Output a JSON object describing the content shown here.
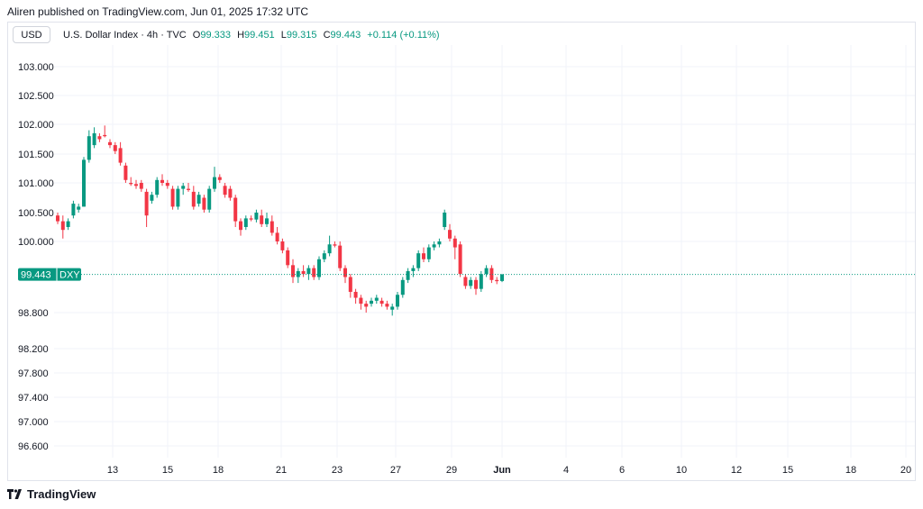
{
  "header": {
    "published": "Aliren published on TradingView.com, Jun 01, 2025 17:32 UTC"
  },
  "legend": {
    "currency": "USD",
    "title": "U.S. Dollar Index · 4h · TVC",
    "open_label": "O",
    "open": "99.333",
    "high_label": "H",
    "high": "99.451",
    "low_label": "L",
    "low": "99.315",
    "close_label": "C",
    "close": "99.443",
    "change": "+0.114 (+0.11%)"
  },
  "footer": {
    "brand": "TradingView"
  },
  "colors": {
    "up": "#089981",
    "down": "#f23645",
    "grid": "#f0f3fa",
    "price_line": "#089981"
  },
  "chart_data": {
    "type": "candlestick",
    "title": "U.S. Dollar Index · 4h · TVC",
    "symbol": "DXY",
    "last_price": "99.443",
    "grid": true,
    "y_ticks": [
      "103.000",
      "102.500",
      "102.000",
      "101.500",
      "101.000",
      "100.500",
      "100.000",
      "98.800",
      "98.200",
      "97.800",
      "97.400",
      "97.000",
      "96.600"
    ],
    "x_ticks": [
      {
        "label": "13",
        "bold": false
      },
      {
        "label": "15",
        "bold": false
      },
      {
        "label": "18",
        "bold": false
      },
      {
        "label": "21",
        "bold": false
      },
      {
        "label": "23",
        "bold": false
      },
      {
        "label": "27",
        "bold": false
      },
      {
        "label": "29",
        "bold": false
      },
      {
        "label": "Jun",
        "bold": true
      },
      {
        "label": "4",
        "bold": false
      },
      {
        "label": "6",
        "bold": false
      },
      {
        "label": "10",
        "bold": false
      },
      {
        "label": "12",
        "bold": false
      },
      {
        "label": "15",
        "bold": false
      },
      {
        "label": "18",
        "bold": false
      },
      {
        "label": "20",
        "bold": false
      }
    ],
    "candles": [
      [
        100.45,
        100.5,
        100.3,
        100.35
      ],
      [
        100.35,
        100.45,
        100.05,
        100.2
      ],
      [
        100.25,
        100.4,
        100.2,
        100.35
      ],
      [
        100.45,
        100.7,
        100.4,
        100.65
      ],
      [
        100.55,
        100.65,
        100.5,
        100.6
      ],
      [
        100.6,
        101.45,
        100.6,
        101.4
      ],
      [
        101.4,
        101.9,
        101.35,
        101.8
      ],
      [
        101.65,
        101.95,
        101.6,
        101.85
      ],
      [
        101.8,
        101.85,
        101.7,
        101.75
      ],
      [
        101.82,
        101.98,
        101.78,
        101.8
      ],
      [
        101.7,
        101.75,
        101.6,
        101.65
      ],
      [
        101.65,
        101.7,
        101.5,
        101.55
      ],
      [
        101.6,
        101.7,
        101.3,
        101.35
      ],
      [
        101.3,
        101.35,
        101.0,
        101.05
      ],
      [
        101.0,
        101.1,
        100.95,
        100.98
      ],
      [
        100.98,
        101.05,
        100.9,
        100.95
      ],
      [
        101.0,
        101.05,
        100.85,
        100.9
      ],
      [
        100.85,
        100.9,
        100.25,
        100.45
      ],
      [
        100.7,
        100.85,
        100.65,
        100.8
      ],
      [
        100.8,
        101.1,
        100.75,
        101.05
      ],
      [
        101.05,
        101.15,
        100.95,
        101.0
      ],
      [
        101.0,
        101.05,
        100.9,
        100.95
      ],
      [
        100.9,
        100.95,
        100.55,
        100.6
      ],
      [
        100.6,
        100.95,
        100.55,
        100.9
      ],
      [
        100.9,
        101.0,
        100.8,
        100.95
      ],
      [
        100.9,
        101.0,
        100.85,
        100.88
      ],
      [
        100.85,
        100.95,
        100.55,
        100.6
      ],
      [
        100.65,
        100.85,
        100.6,
        100.8
      ],
      [
        100.75,
        100.8,
        100.5,
        100.55
      ],
      [
        100.55,
        100.95,
        100.5,
        100.9
      ],
      [
        100.9,
        101.28,
        100.85,
        101.1
      ],
      [
        101.1,
        101.15,
        101.0,
        101.05
      ],
      [
        100.95,
        101.0,
        100.75,
        100.8
      ],
      [
        100.9,
        100.95,
        100.7,
        100.75
      ],
      [
        100.75,
        100.8,
        100.25,
        100.35
      ],
      [
        100.35,
        100.4,
        100.1,
        100.2
      ],
      [
        100.25,
        100.45,
        100.2,
        100.4
      ],
      [
        100.4,
        100.45,
        100.35,
        100.38
      ],
      [
        100.38,
        100.55,
        100.33,
        100.5
      ],
      [
        100.45,
        100.55,
        100.25,
        100.3
      ],
      [
        100.3,
        100.5,
        100.25,
        100.4
      ],
      [
        100.35,
        100.45,
        100.1,
        100.15
      ],
      [
        100.15,
        100.25,
        99.95,
        100.0
      ],
      [
        100.0,
        100.05,
        99.8,
        99.85
      ],
      [
        99.85,
        99.9,
        99.55,
        99.6
      ],
      [
        99.6,
        99.7,
        99.3,
        99.4
      ],
      [
        99.4,
        99.55,
        99.3,
        99.5
      ],
      [
        99.5,
        99.6,
        99.4,
        99.45
      ],
      [
        99.45,
        99.6,
        99.35,
        99.55
      ],
      [
        99.55,
        99.6,
        99.35,
        99.4
      ],
      [
        99.4,
        99.75,
        99.35,
        99.7
      ],
      [
        99.7,
        99.85,
        99.65,
        99.8
      ],
      [
        99.8,
        100.1,
        99.75,
        99.95
      ],
      [
        99.95,
        100.0,
        99.9,
        99.93
      ],
      [
        99.93,
        100.0,
        99.5,
        99.55
      ],
      [
        99.55,
        99.6,
        99.3,
        99.4
      ],
      [
        99.4,
        99.45,
        99.05,
        99.15
      ],
      [
        99.15,
        99.2,
        98.95,
        99.05
      ],
      [
        99.05,
        99.1,
        98.85,
        98.95
      ],
      [
        98.95,
        99.0,
        98.8,
        98.9
      ],
      [
        98.95,
        99.05,
        98.9,
        99.0
      ],
      [
        99.0,
        99.1,
        98.95,
        99.05
      ],
      [
        99.0,
        99.05,
        98.9,
        98.95
      ],
      [
        98.95,
        99.0,
        98.85,
        98.9
      ],
      [
        98.85,
        98.95,
        98.75,
        98.9
      ],
      [
        98.9,
        99.15,
        98.85,
        99.1
      ],
      [
        99.1,
        99.4,
        99.05,
        99.35
      ],
      [
        99.35,
        99.55,
        99.3,
        99.5
      ],
      [
        99.5,
        99.6,
        99.4,
        99.55
      ],
      [
        99.55,
        99.85,
        99.5,
        99.8
      ],
      [
        99.8,
        99.9,
        99.65,
        99.7
      ],
      [
        99.7,
        99.95,
        99.65,
        99.9
      ],
      [
        99.9,
        100.0,
        99.85,
        99.95
      ],
      [
        99.95,
        100.05,
        99.9,
        100.0
      ],
      [
        100.25,
        100.55,
        100.2,
        100.5
      ],
      [
        100.2,
        100.3,
        100.0,
        100.05
      ],
      [
        100.05,
        100.1,
        99.7,
        99.9
      ],
      [
        99.95,
        100.0,
        99.4,
        99.45
      ],
      [
        99.4,
        99.45,
        99.2,
        99.25
      ],
      [
        99.25,
        99.4,
        99.2,
        99.35
      ],
      [
        99.35,
        99.4,
        99.1,
        99.2
      ],
      [
        99.2,
        99.5,
        99.15,
        99.45
      ],
      [
        99.45,
        99.6,
        99.4,
        99.55
      ],
      [
        99.55,
        99.6,
        99.3,
        99.35
      ],
      [
        99.35,
        99.4,
        99.28,
        99.33
      ],
      [
        99.333,
        99.451,
        99.315,
        99.443
      ]
    ]
  }
}
